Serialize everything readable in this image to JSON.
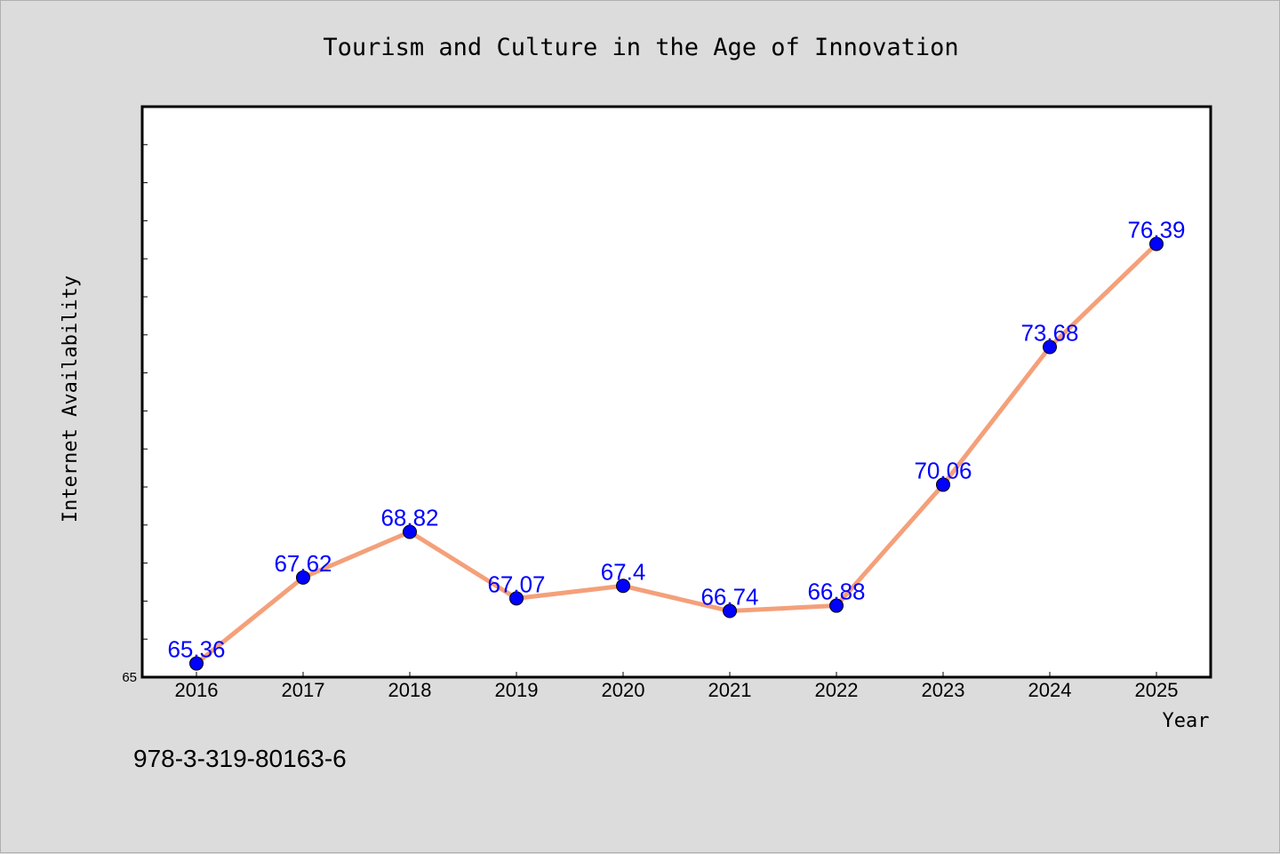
{
  "footer_text": "978-3-319-80163-6",
  "colors": {
    "line": "#f4a07a",
    "marker": "#0000ff",
    "labels": "#0000ff",
    "background": "#dcdcdc",
    "plot_bg": "#ffffff"
  },
  "chart_data": {
    "type": "line",
    "title": "Tourism and Culture in the Age of Innovation",
    "xlabel": "Year",
    "ylabel": "Internet Availability",
    "categories": [
      "2016",
      "2017",
      "2018",
      "2019",
      "2020",
      "2021",
      "2022",
      "2023",
      "2024",
      "2025"
    ],
    "values": [
      65.36,
      67.62,
      68.82,
      67.07,
      67.4,
      66.74,
      66.88,
      70.06,
      73.68,
      76.39
    ],
    "data_labels": [
      "65.36",
      "67.62",
      "68.82",
      "67.07",
      "67.4",
      "66.74",
      "66.88",
      "70.06",
      "73.68",
      "76.39"
    ],
    "ylim": [
      65,
      80
    ],
    "y_min_label": "65",
    "y_minor_tick_step": 1,
    "grid": false,
    "legend": "none"
  }
}
